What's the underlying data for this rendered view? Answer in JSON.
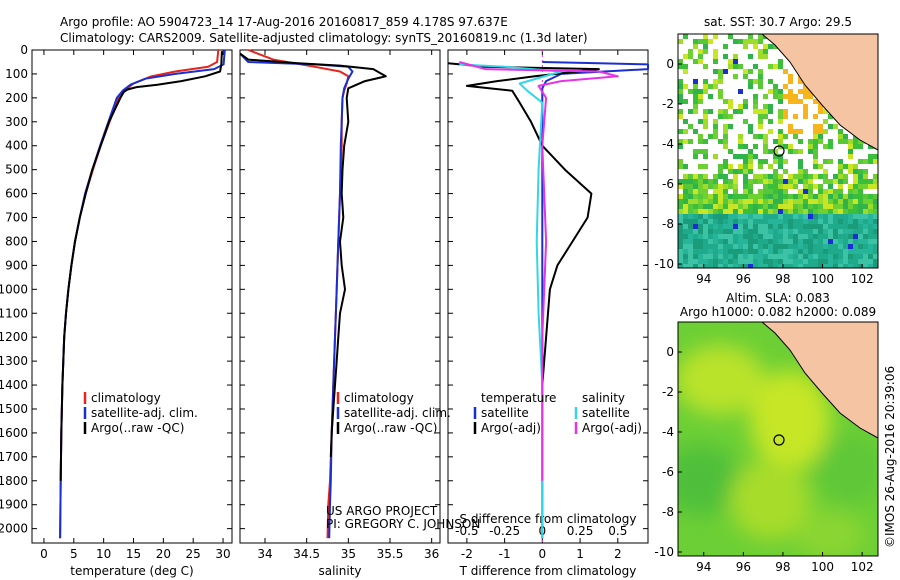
{
  "header": {
    "line1": "Argo profile: AO 5904723_14 17-Aug-2016 20160817_859 4.178S 97.637E",
    "line2": "Climatology: CARS2009. Satellite-adjusted climatology: synTS_20160819.nc (1.3d later)"
  },
  "credits": {
    "project": "US ARGO PROJECT",
    "pi": "PI: GREGORY C. JOHNSON",
    "imos": "©IMOS 26-Aug-2016 20:39:06"
  },
  "colors": {
    "climatology": "#e8231a",
    "satellite": "#1a2fd0",
    "argo": "#000000",
    "sal_sat": "#33d6e6",
    "sal_argo": "#e633e6"
  },
  "chart_data": [
    {
      "id": "temperature",
      "type": "line",
      "xlabel": "temperature (deg C)",
      "ylabel": "",
      "xlim": [
        -2,
        31.5
      ],
      "ylim": [
        2060,
        0
      ],
      "xticks": [
        0,
        5,
        10,
        15,
        20,
        25,
        30
      ],
      "yticks": [
        0,
        100,
        200,
        300,
        400,
        500,
        600,
        700,
        800,
        900,
        1000,
        1100,
        1200,
        1300,
        1400,
        1500,
        1600,
        1700,
        1800,
        1900,
        2000
      ],
      "legend": [
        "climatology",
        "satellite-adj. clim.",
        "Argo(..raw -QC)"
      ],
      "series": [
        {
          "name": "climatology",
          "color": "#e8231a",
          "x": [
            29.2,
            29.0,
            27.5,
            22,
            18,
            15,
            13.5,
            12.5,
            11,
            9.5,
            8.2,
            7,
            6,
            5.2,
            4.6,
            4.1,
            3.7,
            3.4,
            3.1,
            2.9,
            2.8,
            2.7
          ],
          "y": [
            0,
            50,
            70,
            90,
            110,
            140,
            170,
            200,
            300,
            400,
            500,
            600,
            700,
            800,
            900,
            1000,
            1100,
            1200,
            1400,
            1600,
            1800,
            2040
          ]
        },
        {
          "name": "satellite-adj. clim.",
          "color": "#1a2fd0",
          "x": [
            30.3,
            30.1,
            28.5,
            22,
            17,
            14.5,
            13.2,
            12.2,
            10.8,
            9.4,
            8.1,
            6.9,
            6,
            5.2,
            4.6,
            4.1,
            3.7,
            3.4,
            3.1,
            2.9,
            2.8,
            2.7
          ],
          "y": [
            0,
            60,
            80,
            100,
            120,
            145,
            170,
            200,
            300,
            400,
            500,
            600,
            700,
            800,
            900,
            1000,
            1100,
            1200,
            1400,
            1600,
            1800,
            2040
          ]
        },
        {
          "name": "Argo(..raw -QC)",
          "color": "#000000",
          "x": [
            29.8,
            29.7,
            29.5,
            27,
            23,
            19,
            15.5,
            14,
            13.4,
            12.8,
            10.9,
            9.5,
            8.1,
            7,
            6,
            5.2,
            4.6,
            4.1,
            3.7,
            3.4,
            3.1,
            2.9,
            2.8
          ],
          "y": [
            5,
            60,
            90,
            110,
            130,
            145,
            155,
            165,
            175,
            200,
            300,
            400,
            500,
            600,
            700,
            800,
            900,
            1000,
            1100,
            1200,
            1400,
            1600,
            1800
          ]
        }
      ]
    },
    {
      "id": "salinity",
      "type": "line",
      "xlabel": "salinity",
      "ylabel": "",
      "xlim": [
        33.7,
        36.1
      ],
      "ylim": [
        2060,
        0
      ],
      "xticks": [
        34,
        34.5,
        35,
        35.5,
        36
      ],
      "yticks": [
        0,
        100,
        200,
        300,
        400,
        500,
        600,
        700,
        800,
        900,
        1000,
        1100,
        1200,
        1300,
        1400,
        1500,
        1600,
        1700,
        1800,
        1900,
        2000
      ],
      "legend": [
        "climatology",
        "satellite-adj. clim.",
        "Argo(..raw -QC)"
      ],
      "series": [
        {
          "name": "climatology",
          "color": "#e8231a",
          "x": [
            33.8,
            34.1,
            34.6,
            34.9,
            35.0,
            34.98,
            34.95,
            34.93,
            34.92,
            34.92,
            34.91,
            34.9,
            34.88,
            34.86,
            34.84,
            34.82,
            34.8,
            34.78,
            34.76,
            34.75
          ],
          "y": [
            0,
            40,
            70,
            90,
            110,
            140,
            170,
            200,
            300,
            400,
            500,
            600,
            800,
            1000,
            1200,
            1400,
            1600,
            1800,
            1900,
            2040
          ]
        },
        {
          "name": "satellite-adj. clim.",
          "color": "#1a2fd0",
          "x": [
            33.7,
            33.8,
            34.6,
            35.0,
            35.05,
            35.0,
            34.95,
            34.93,
            34.92,
            34.91,
            34.9,
            34.88,
            34.86,
            34.84,
            34.82,
            34.8,
            34.79,
            34.78,
            34.77
          ],
          "y": [
            15,
            50,
            60,
            70,
            90,
            120,
            160,
            200,
            300,
            400,
            600,
            800,
            1000,
            1200,
            1400,
            1600,
            1800,
            1900,
            2040
          ]
        },
        {
          "name": "Argo(..raw -QC)",
          "color": "#000000",
          "x": [
            33.7,
            33.8,
            34.4,
            34.9,
            35.3,
            35.45,
            35.2,
            35.0,
            34.98,
            35.0,
            34.95,
            34.93,
            34.92,
            34.94,
            34.9,
            34.92,
            34.96,
            34.9,
            34.88,
            34.86,
            34.84,
            34.82,
            34.8,
            34.79
          ],
          "y": [
            15,
            40,
            55,
            65,
            80,
            110,
            130,
            160,
            200,
            300,
            400,
            500,
            600,
            700,
            800,
            900,
            1000,
            1100,
            1200,
            1300,
            1400,
            1500,
            1600,
            1700
          ]
        }
      ]
    },
    {
      "id": "difference",
      "type": "line",
      "xlabel": "T difference from climatology",
      "xlabel2": "S difference from climatology",
      "ylabel": "",
      "xlim": [
        -2.5,
        2.8
      ],
      "ylim": [
        2060,
        0
      ],
      "xticks": [
        -2,
        -1,
        0,
        1,
        2
      ],
      "xticks2": [
        -0.5,
        -0.25,
        0,
        0.25,
        0.5
      ],
      "yticks": [
        0,
        100,
        200,
        300,
        400,
        500,
        600,
        700,
        800,
        900,
        1000,
        1100,
        1200,
        1300,
        1400,
        1500,
        1600,
        1700,
        1800,
        1900,
        2000
      ],
      "legend_t_title": "temperature",
      "legend_s_title": "salinity",
      "legend": [
        "satellite",
        "Argo(-adj)",
        "satellite",
        "Argo(-adj)"
      ],
      "series": [
        {
          "name": "T satellite",
          "color": "#1a2fd0",
          "x": [
            0,
            1.5,
            2.8,
            2.8,
            0.5,
            0.1,
            0,
            0,
            0,
            0,
            0
          ],
          "y": [
            50,
            55,
            60,
            80,
            100,
            130,
            160,
            200,
            600,
            1200,
            2040
          ]
        },
        {
          "name": "T Argo(-adj)",
          "color": "#000000",
          "x": [
            -2.5,
            -1.5,
            1.5,
            -0.2,
            -1.2,
            -2.0,
            -0.8,
            -0.6,
            -0.3,
            0,
            0.6,
            1.3,
            1.2,
            0.8,
            0.4,
            0.2,
            0.1,
            0
          ],
          "y": [
            55,
            70,
            80,
            110,
            130,
            150,
            170,
            220,
            300,
            400,
            500,
            600,
            700,
            800,
            900,
            1000,
            1200,
            1400
          ]
        },
        {
          "name": "S satellite",
          "color": "#33d6e6",
          "x": [
            -2.2,
            -1,
            0.5,
            -0.6,
            -0.4,
            0,
            -0.1,
            -0.15,
            -0.1,
            0,
            0,
            0
          ],
          "y": [
            60,
            70,
            90,
            140,
            170,
            220,
            500,
            800,
            1100,
            1400,
            1700,
            2040
          ]
        },
        {
          "name": "S Argo(-adj)",
          "color": "#e633e6",
          "x": [
            -2.2,
            -1.5,
            1.5,
            2.0,
            0.5,
            -0.1,
            0.1,
            0,
            0.1,
            0,
            0
          ],
          "y": [
            50,
            80,
            90,
            110,
            130,
            150,
            200,
            400,
            800,
            1200,
            1800
          ]
        }
      ]
    },
    {
      "id": "sst-map",
      "type": "heatmap",
      "title": "sat. SST: 30.7  Argo: 29.5",
      "xlim": [
        92.7,
        102.8
      ],
      "ylim": [
        -10.2,
        1.5
      ],
      "xticks": [
        94,
        96,
        98,
        100,
        102
      ],
      "yticks": [
        0,
        -2,
        -4,
        -6,
        -8,
        -10
      ],
      "argo_position": [
        97.637,
        -4.178
      ]
    },
    {
      "id": "sla-map",
      "type": "heatmap",
      "title": "Altim. SLA: 0.083",
      "subtitle": "Argo h1000: 0.082  h2000: 0.089",
      "xlim": [
        92.7,
        102.8
      ],
      "ylim": [
        -10.2,
        1.5
      ],
      "xticks": [
        94,
        96,
        98,
        100,
        102
      ],
      "yticks": [
        0,
        -2,
        -4,
        -6,
        -8,
        -10
      ],
      "argo_position": [
        97.637,
        -4.178
      ]
    }
  ]
}
